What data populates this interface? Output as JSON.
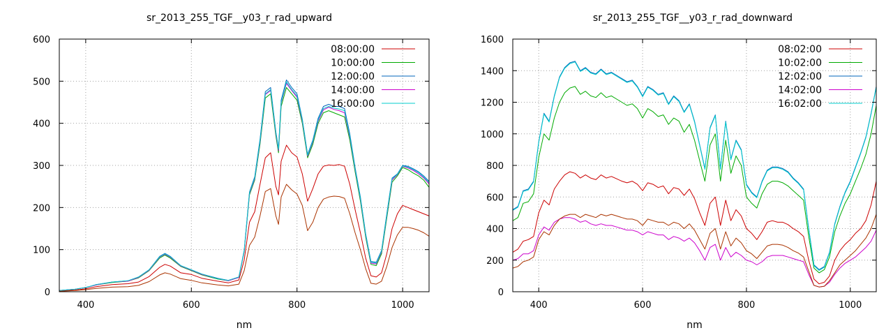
{
  "chart_data": [
    {
      "type": "line",
      "title": "sr_2013_255_TGF__y03_r_rad_upward",
      "xlabel": "nm",
      "ylabel": "",
      "xlim": [
        350,
        1050
      ],
      "ylim": [
        0,
        600
      ],
      "xticks": [
        400,
        600,
        800,
        1000
      ],
      "yticks": [
        0,
        100,
        200,
        300,
        400,
        500,
        600
      ],
      "grid": true,
      "legend_position": "top-right",
      "x": [
        350,
        380,
        400,
        420,
        450,
        480,
        500,
        520,
        540,
        550,
        560,
        580,
        600,
        620,
        650,
        670,
        690,
        700,
        710,
        720,
        730,
        740,
        750,
        760,
        765,
        770,
        780,
        790,
        800,
        810,
        820,
        830,
        840,
        850,
        860,
        870,
        880,
        890,
        900,
        910,
        920,
        930,
        940,
        950,
        960,
        970,
        980,
        990,
        1000,
        1010,
        1020,
        1030,
        1040,
        1050
      ],
      "series": [
        {
          "name": "08:00:00",
          "color": "#cc0000",
          "values": [
            2,
            4,
            7,
            12,
            17,
            19,
            23,
            36,
            58,
            65,
            61,
            45,
            41,
            32,
            25,
            21,
            28,
            75,
            165,
            190,
            255,
            318,
            330,
            250,
            230,
            310,
            348,
            330,
            320,
            280,
            215,
            245,
            280,
            298,
            301,
            300,
            302,
            298,
            255,
            195,
            140,
            80,
            38,
            35,
            45,
            90,
            150,
            185,
            205,
            200,
            195,
            190,
            185,
            180
          ]
        },
        {
          "name": "10:00:00",
          "color": "#00aa00",
          "values": [
            3,
            6,
            10,
            16,
            22,
            25,
            33,
            50,
            80,
            87,
            80,
            60,
            50,
            40,
            30,
            26,
            34,
            95,
            230,
            265,
            350,
            460,
            470,
            370,
            330,
            440,
            485,
            470,
            455,
            400,
            318,
            350,
            400,
            425,
            430,
            425,
            420,
            415,
            360,
            285,
            215,
            130,
            65,
            62,
            90,
            175,
            260,
            275,
            295,
            290,
            282,
            275,
            265,
            248
          ]
        },
        {
          "name": "12:00:00",
          "color": "#0066bb",
          "values": [
            3,
            6,
            10,
            17,
            23,
            26,
            35,
            52,
            84,
            91,
            84,
            62,
            52,
            42,
            32,
            27,
            35,
            98,
            237,
            273,
            362,
            475,
            485,
            380,
            340,
            455,
            503,
            485,
            470,
            410,
            326,
            360,
            412,
            440,
            445,
            440,
            440,
            435,
            375,
            295,
            225,
            138,
            72,
            70,
            98,
            185,
            270,
            280,
            300,
            298,
            292,
            285,
            275,
            262
          ]
        },
        {
          "name": "14:00:00",
          "color": "#cc00cc",
          "values": [
            3,
            6,
            10,
            16,
            23,
            25,
            34,
            51,
            82,
            89,
            82,
            61,
            51,
            41,
            31,
            26,
            34,
            96,
            233,
            268,
            355,
            468,
            478,
            375,
            335,
            448,
            495,
            478,
            462,
            405,
            322,
            355,
            405,
            432,
            438,
            433,
            430,
            425,
            367,
            290,
            220,
            134,
            68,
            66,
            94,
            180,
            265,
            278,
            298,
            294,
            288,
            280,
            270,
            256
          ]
        },
        {
          "name": "16:00:00",
          "color": "#00cccc",
          "values": [
            3,
            6,
            10,
            17,
            23,
            26,
            35,
            52,
            83,
            90,
            83,
            62,
            52,
            42,
            31,
            27,
            35,
            97,
            235,
            270,
            358,
            470,
            480,
            378,
            338,
            450,
            498,
            480,
            465,
            408,
            324,
            357,
            408,
            435,
            440,
            436,
            434,
            430,
            370,
            292,
            222,
            136,
            70,
            68,
            96,
            182,
            268,
            279,
            299,
            296,
            290,
            283,
            272,
            259
          ]
        },
        {
          "name": "",
          "color": "#aa3300",
          "values": [
            1,
            3,
            5,
            8,
            11,
            12,
            15,
            24,
            40,
            45,
            42,
            31,
            27,
            21,
            16,
            14,
            18,
            50,
            110,
            130,
            180,
            238,
            245,
            180,
            160,
            225,
            255,
            242,
            232,
            205,
            145,
            165,
            200,
            220,
            225,
            227,
            226,
            222,
            185,
            140,
            100,
            55,
            20,
            18,
            25,
            60,
            105,
            135,
            153,
            153,
            150,
            146,
            140,
            132
          ]
        }
      ]
    },
    {
      "type": "line",
      "title": "sr_2013_255_TGF__y03_r_rad_downward",
      "xlabel": "nm",
      "ylabel": "",
      "xlim": [
        350,
        1050
      ],
      "ylim": [
        0,
        1600
      ],
      "xticks": [
        400,
        600,
        800,
        1000
      ],
      "yticks": [
        0,
        200,
        400,
        600,
        800,
        1000,
        1200,
        1400,
        1600
      ],
      "grid": true,
      "legend_position": "top-right",
      "x": [
        350,
        360,
        370,
        380,
        390,
        400,
        410,
        420,
        430,
        440,
        450,
        460,
        470,
        480,
        490,
        500,
        510,
        520,
        530,
        540,
        550,
        560,
        570,
        580,
        590,
        600,
        610,
        620,
        630,
        640,
        650,
        660,
        670,
        680,
        690,
        700,
        710,
        720,
        730,
        740,
        750,
        760,
        770,
        780,
        790,
        800,
        810,
        820,
        830,
        840,
        850,
        860,
        870,
        880,
        890,
        900,
        910,
        920,
        930,
        940,
        950,
        960,
        970,
        980,
        990,
        1000,
        1010,
        1020,
        1030,
        1040,
        1050
      ],
      "series": [
        {
          "name": "08:02:00",
          "color": "#cc0000",
          "values": [
            250,
            270,
            320,
            330,
            350,
            500,
            580,
            550,
            650,
            700,
            740,
            760,
            750,
            720,
            740,
            720,
            710,
            740,
            720,
            730,
            715,
            700,
            690,
            700,
            680,
            640,
            690,
            680,
            660,
            670,
            620,
            660,
            650,
            610,
            650,
            590,
            500,
            420,
            560,
            600,
            420,
            580,
            450,
            520,
            480,
            400,
            370,
            330,
            380,
            440,
            450,
            440,
            440,
            425,
            400,
            380,
            350,
            200,
            80,
            50,
            60,
            100,
            200,
            260,
            300,
            330,
            370,
            400,
            450,
            550,
            700
          ]
        },
        {
          "name": "10:02:00",
          "color": "#00aa00",
          "values": [
            450,
            470,
            560,
            570,
            620,
            850,
            1000,
            960,
            1100,
            1200,
            1260,
            1290,
            1300,
            1250,
            1270,
            1240,
            1230,
            1260,
            1230,
            1240,
            1220,
            1200,
            1180,
            1190,
            1160,
            1100,
            1160,
            1140,
            1110,
            1120,
            1060,
            1100,
            1080,
            1010,
            1060,
            960,
            830,
            700,
            930,
            1000,
            700,
            960,
            750,
            860,
            800,
            600,
            560,
            530,
            620,
            680,
            700,
            700,
            690,
            670,
            640,
            610,
            580,
            350,
            150,
            120,
            140,
            220,
            380,
            480,
            560,
            620,
            700,
            780,
            870,
            1000,
            1180
          ]
        },
        {
          "name": "12:02:00",
          "color": "#0066bb",
          "values": [
            520,
            540,
            640,
            650,
            700,
            950,
            1130,
            1080,
            1240,
            1360,
            1420,
            1450,
            1460,
            1400,
            1420,
            1390,
            1380,
            1410,
            1380,
            1390,
            1370,
            1350,
            1330,
            1340,
            1300,
            1240,
            1300,
            1280,
            1250,
            1260,
            1190,
            1240,
            1210,
            1140,
            1190,
            1080,
            930,
            780,
            1040,
            1120,
            780,
            1080,
            840,
            960,
            900,
            680,
            630,
            600,
            700,
            770,
            790,
            790,
            780,
            760,
            720,
            690,
            650,
            400,
            170,
            140,
            160,
            250,
            430,
            540,
            630,
            700,
            790,
            880,
            980,
            1130,
            1300
          ]
        },
        {
          "name": "14:02:00",
          "color": "#cc00cc",
          "values": [
            200,
            210,
            240,
            240,
            260,
            360,
            410,
            390,
            440,
            460,
            470,
            470,
            460,
            440,
            450,
            430,
            420,
            430,
            420,
            420,
            410,
            400,
            390,
            390,
            380,
            360,
            380,
            370,
            360,
            360,
            330,
            350,
            340,
            320,
            340,
            310,
            260,
            200,
            280,
            300,
            200,
            280,
            220,
            250,
            230,
            200,
            190,
            170,
            190,
            220,
            230,
            230,
            230,
            220,
            210,
            200,
            190,
            110,
            40,
            30,
            35,
            60,
            110,
            150,
            180,
            200,
            220,
            250,
            280,
            320,
            390
          ]
        },
        {
          "name": "16:02:00",
          "color": "#00cccc",
          "values": [
            515,
            535,
            635,
            645,
            695,
            945,
            1125,
            1075,
            1235,
            1355,
            1415,
            1445,
            1455,
            1395,
            1415,
            1385,
            1375,
            1405,
            1375,
            1385,
            1365,
            1345,
            1325,
            1335,
            1295,
            1235,
            1295,
            1275,
            1245,
            1255,
            1185,
            1235,
            1205,
            1135,
            1185,
            1075,
            925,
            775,
            1035,
            1115,
            775,
            1075,
            835,
            955,
            895,
            675,
            625,
            595,
            695,
            765,
            785,
            785,
            775,
            755,
            715,
            685,
            645,
            395,
            165,
            135,
            155,
            245,
            425,
            535,
            625,
            695,
            785,
            875,
            975,
            1125,
            1295
          ]
        },
        {
          "name": "",
          "color": "#aa3300",
          "values": [
            150,
            160,
            190,
            200,
            220,
            330,
            380,
            360,
            420,
            460,
            480,
            490,
            490,
            470,
            490,
            480,
            470,
            490,
            480,
            490,
            480,
            470,
            460,
            460,
            450,
            420,
            460,
            450,
            440,
            440,
            420,
            440,
            430,
            400,
            430,
            390,
            330,
            270,
            370,
            400,
            270,
            380,
            290,
            340,
            310,
            260,
            240,
            210,
            250,
            290,
            300,
            300,
            295,
            280,
            260,
            245,
            220,
            130,
            40,
            30,
            35,
            70,
            120,
            170,
            200,
            230,
            260,
            300,
            340,
            400,
            490
          ]
        }
      ]
    }
  ]
}
